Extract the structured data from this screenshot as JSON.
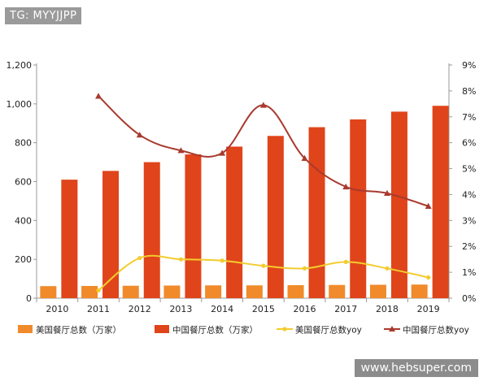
{
  "overlay": {
    "tag": "TG: MYYJJPP",
    "watermark": "www.hebsuper.com"
  },
  "chart_data": {
    "type": "bar",
    "categories": [
      "2010",
      "2011",
      "2012",
      "2013",
      "2014",
      "2015",
      "2016",
      "2017",
      "2018",
      "2019"
    ],
    "series": [
      {
        "name": "美国餐厅总数（万家）",
        "kind": "bar",
        "axis": "left",
        "color": "#f08a2a",
        "values": [
          62,
          63,
          64,
          65,
          66,
          66,
          67,
          68,
          69,
          70
        ]
      },
      {
        "name": "中国餐厅总数（万家）",
        "kind": "bar",
        "axis": "left",
        "color": "#e0441a",
        "values": [
          610,
          655,
          700,
          740,
          780,
          835,
          880,
          920,
          960,
          990
        ]
      },
      {
        "name": "美国餐厅总数yoy",
        "kind": "line",
        "axis": "right",
        "color": "#f3cc2e",
        "values": [
          null,
          0.3,
          1.55,
          1.5,
          1.45,
          1.25,
          1.15,
          1.4,
          1.15,
          0.8
        ]
      },
      {
        "name": "中国餐厅总数yoy",
        "kind": "line",
        "axis": "right",
        "color": "#a83a2e",
        "values": [
          null,
          7.8,
          6.3,
          5.7,
          5.6,
          7.45,
          5.4,
          4.3,
          4.05,
          3.55
        ]
      }
    ],
    "yleft": {
      "min": 0,
      "max": 1200,
      "ticks": [
        "0",
        "200",
        "400",
        "600",
        "800",
        "1,000",
        "1,200"
      ]
    },
    "yright": {
      "min": 0,
      "max": 9,
      "ticks": [
        "0%",
        "1%",
        "2%",
        "3%",
        "4%",
        "5%",
        "6%",
        "7%",
        "8%",
        "9%"
      ]
    },
    "legend": "bottom",
    "grid": false
  }
}
